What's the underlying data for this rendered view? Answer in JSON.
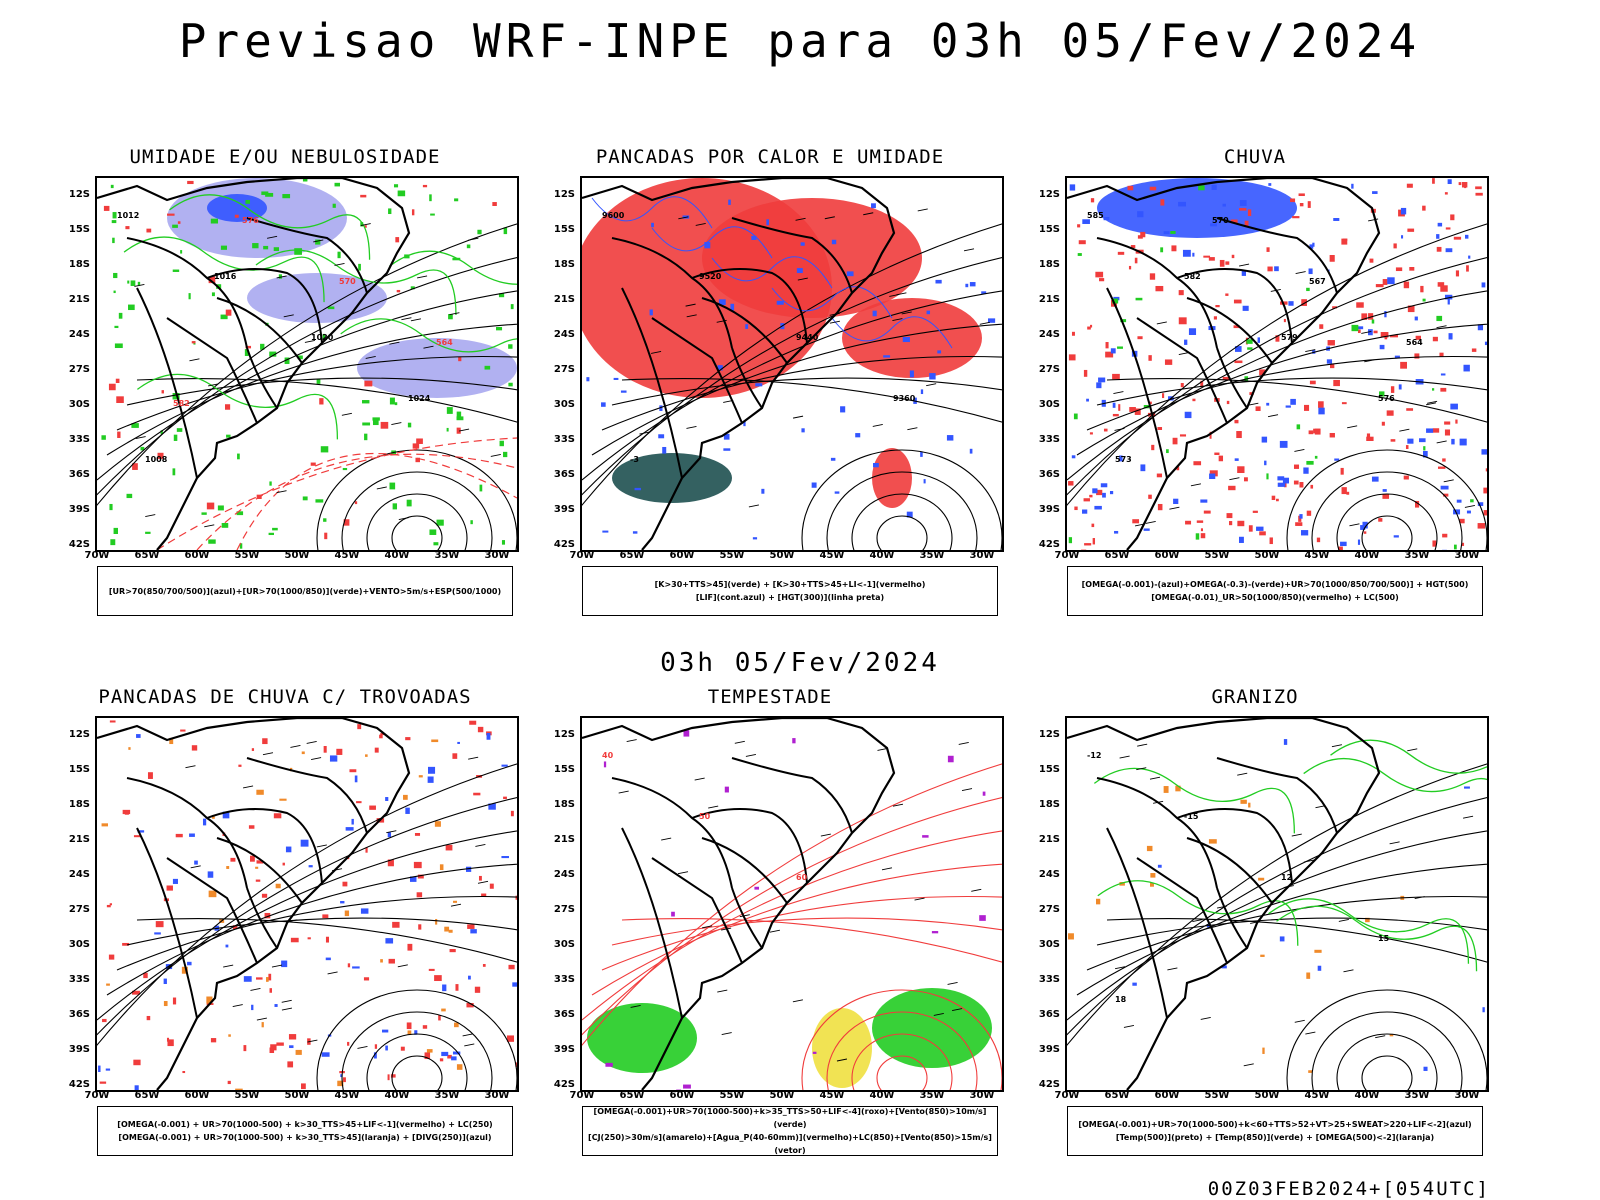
{
  "header": {
    "title": "Previsao WRF-INPE  para 03h 05/Fev/2024"
  },
  "middle": {
    "subtitle": "03h 05/Fev/2024"
  },
  "footer": {
    "run": "00Z03FEB2024+[054UTC]"
  },
  "axes": {
    "lat_labels": [
      "12S",
      "15S",
      "18S",
      "21S",
      "24S",
      "27S",
      "30S",
      "33S",
      "36S",
      "39S",
      "42S"
    ],
    "lon_labels": [
      "70W",
      "65W",
      "60W",
      "55W",
      "50W",
      "45W",
      "40W",
      "35W",
      "30W"
    ]
  },
  "colors": {
    "blue": "#3355ff",
    "lavender": "#a8a8f0",
    "green": "#22cc22",
    "red": "#f03c3c",
    "orange": "#f08a2a",
    "yellow": "#f0e040",
    "darkteal": "#1e5050",
    "purple": "#b020d0"
  },
  "panels": [
    {
      "title": "UMIDADE E/OU NEBULOSIDADE",
      "legend": [
        "[UR>70(850/700/500)](azul)+[UR>70(1000/850)](verde)+VENTO>5m/s+ESP(500/1000)"
      ],
      "contour_labels": [
        "1012",
        "1016",
        "1020",
        "1024",
        "1008",
        "576",
        "570",
        "564",
        "582"
      ]
    },
    {
      "title": "PANCADAS POR CALOR E UMIDADE",
      "legend": [
        "[K>30+TTS>45](verde) + [K>30+TTS>45+LI<-1](vermelho)",
        "[LIF](cont.azul) + [HGT(300)](linha preta)"
      ],
      "contour_labels": [
        "9600",
        "9520",
        "9440",
        "9360",
        "-3"
      ]
    },
    {
      "title": "CHUVA",
      "legend": [
        "[OMEGA(-0.001)-(azul)+OMEGA(-0.3)-(verde)+UR>70(1000/850/700/500)] + HGT(500)",
        "[OMEGA(-0.01)_UR>50(1000/850)(vermelho) + LC(500)"
      ],
      "contour_labels": [
        "585",
        "582",
        "579",
        "576",
        "573",
        "570",
        "567",
        "564"
      ]
    },
    {
      "title": "PANCADAS DE CHUVA C/ TROVOADAS",
      "legend": [
        "[OMEGA(-0.001) + UR>70(1000-500) + k>30_TTS>45+LIF<-1](vermelho) + LC(250)",
        "[OMEGA(-0.001) + UR>70(1000-500) + k>30_TTS>45](laranja) + [DIVG(250)](azul)"
      ],
      "contour_labels": []
    },
    {
      "title": "TEMPESTADE",
      "legend": [
        "[OMEGA(-0.001)+UR>70(1000-500)+k>35_TTS>50+LIF<-4](roxo)+[Vento(850)>10m/s](verde)",
        "[CJ(250)>30m/s](amarelo)+[Agua_P(40-60mm)](vermelho)+LC(850)+[Vento(850)>15m/s](vetor)"
      ],
      "contour_labels": [
        "40",
        "50",
        "60"
      ]
    },
    {
      "title": "GRANIZO",
      "legend": [
        "[OMEGA(-0.001)+UR>70(1000-500)+k<60+TTS>52+VT>25+SWEAT>220+LIF<-2](azul)",
        "[Temp(500)](preto) + [Temp(850)](verde) + [OMEGA(500)<-2](laranja)"
      ],
      "contour_labels": [
        "-12",
        "-15",
        "12",
        "15",
        "18"
      ]
    }
  ]
}
